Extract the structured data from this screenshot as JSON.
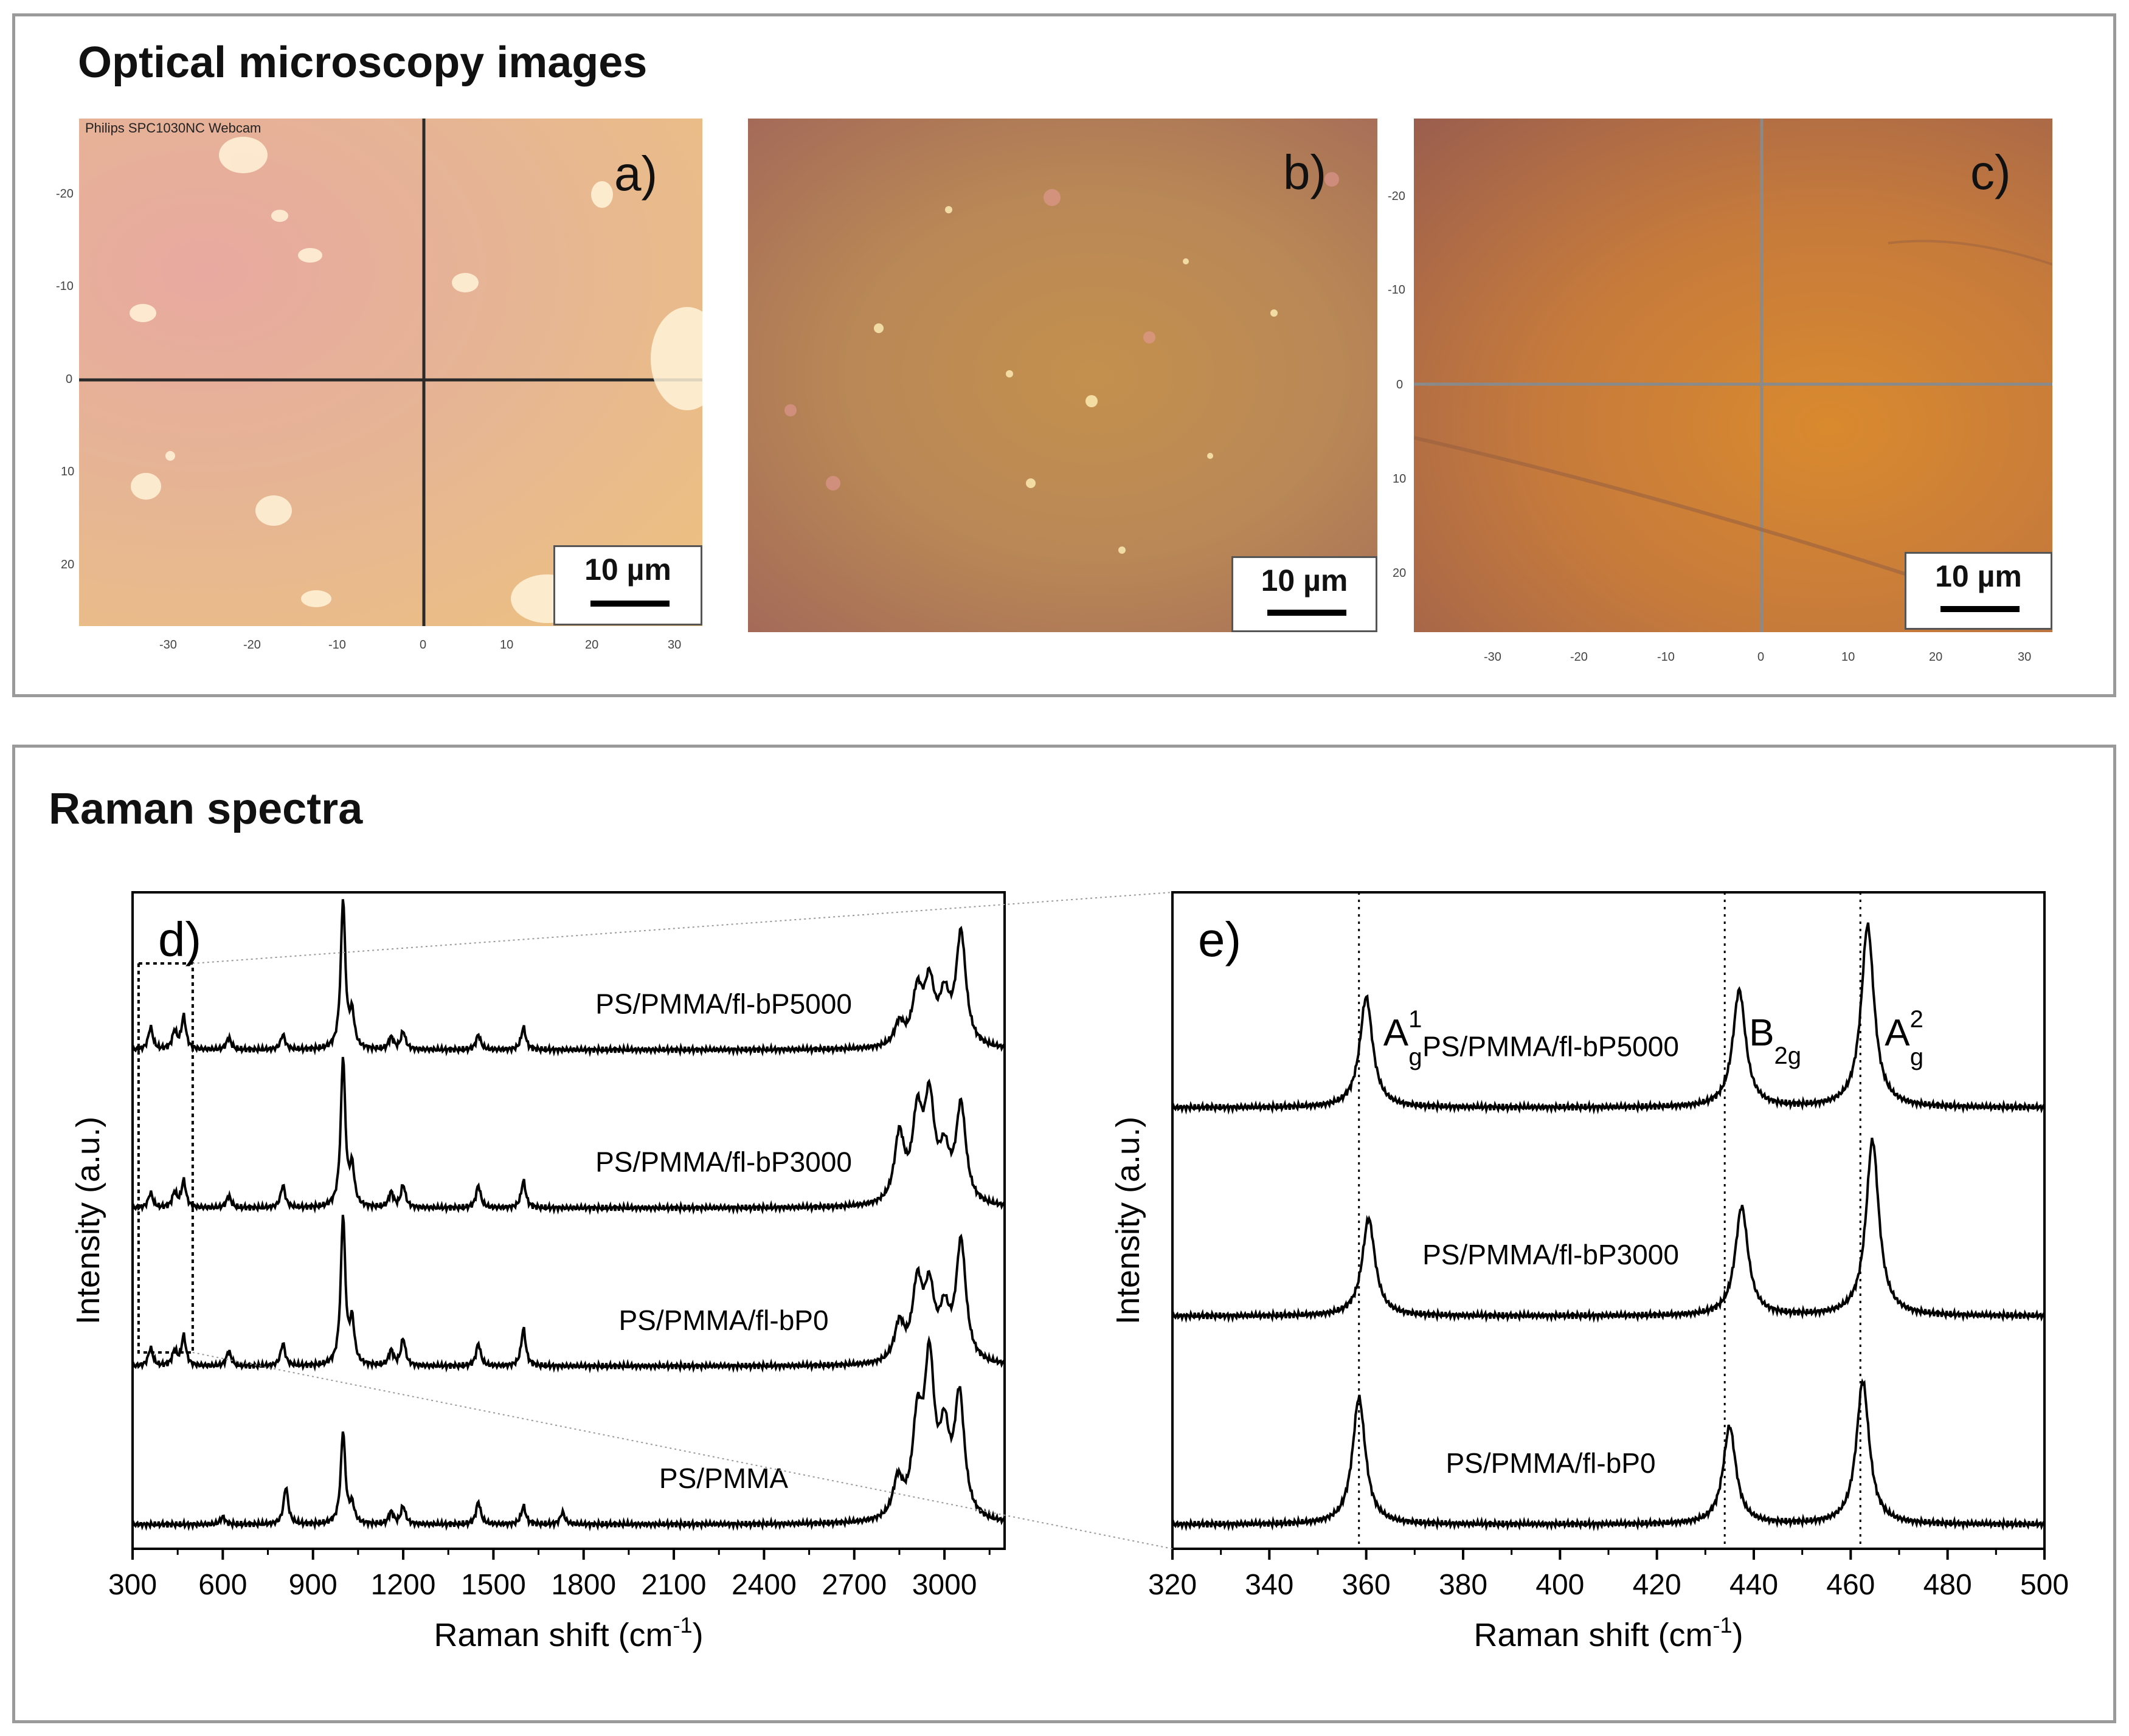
{
  "microscopy": {
    "heading": "Optical microscopy images",
    "watermark": "Philips SPC1030NC Webcam",
    "panels": [
      {
        "letter": "a)",
        "scale": "10 µm",
        "ticks_y": [
          "-20",
          "-10",
          "0",
          "10",
          "20"
        ],
        "ticks_x": [
          "-30",
          "-20",
          "-10",
          "0",
          "10",
          "20",
          "30"
        ]
      },
      {
        "letter": "b)",
        "scale": "10 µm"
      },
      {
        "letter": "c)",
        "scale": "10 µm",
        "ticks_y": [
          "-20",
          "-10",
          "0",
          "10",
          "20"
        ],
        "ticks_x": [
          "-30",
          "-20",
          "-10",
          "0",
          "10",
          "20",
          "30"
        ]
      }
    ],
    "colors": {
      "a": "#e6b48c",
      "b": "#c08850",
      "c": "#cc8038"
    }
  },
  "raman": {
    "heading": "Raman spectra"
  },
  "chart_data": [
    {
      "type": "line",
      "panel": "d)",
      "xlabel": "Raman shift (cm",
      "xlabel_sup": "-1",
      "xlabel_end": ")",
      "ylabel": "Intensity (a.u.)",
      "xlim": [
        300,
        3200
      ],
      "xticks": [
        "300",
        "600",
        "900",
        "1200",
        "1500",
        "1800",
        "2100",
        "2400",
        "2700",
        "3000"
      ],
      "series": [
        {
          "name": "PS/PMMA/fl-bP5000",
          "offset": 3.0,
          "peaks": [
            [
              360,
              0.15
            ],
            [
              440,
              0.12
            ],
            [
              470,
              0.22
            ],
            [
              620,
              0.08
            ],
            [
              800,
              0.1
            ],
            [
              1000,
              1.0
            ],
            [
              1030,
              0.22
            ],
            [
              1160,
              0.08
            ],
            [
              1200,
              0.12
            ],
            [
              1450,
              0.1
            ],
            [
              1600,
              0.15
            ],
            [
              2850,
              0.15
            ],
            [
              2910,
              0.35
            ],
            [
              2950,
              0.4
            ],
            [
              3000,
              0.3
            ],
            [
              3055,
              0.75
            ]
          ]
        },
        {
          "name": "PS/PMMA/fl-bP3000",
          "offset": 2.0,
          "peaks": [
            [
              360,
              0.1
            ],
            [
              440,
              0.1
            ],
            [
              470,
              0.18
            ],
            [
              620,
              0.08
            ],
            [
              800,
              0.15
            ],
            [
              1000,
              1.0
            ],
            [
              1030,
              0.25
            ],
            [
              1160,
              0.1
            ],
            [
              1200,
              0.15
            ],
            [
              1450,
              0.15
            ],
            [
              1600,
              0.18
            ],
            [
              2850,
              0.45
            ],
            [
              2910,
              0.55
            ],
            [
              2950,
              0.65
            ],
            [
              3000,
              0.3
            ],
            [
              3055,
              0.65
            ]
          ]
        },
        {
          "name": "PS/PMMA/fl-bP0",
          "offset": 1.0,
          "peaks": [
            [
              360,
              0.12
            ],
            [
              440,
              0.1
            ],
            [
              470,
              0.2
            ],
            [
              620,
              0.1
            ],
            [
              800,
              0.15
            ],
            [
              1000,
              1.0
            ],
            [
              1030,
              0.28
            ],
            [
              1160,
              0.1
            ],
            [
              1200,
              0.18
            ],
            [
              1450,
              0.15
            ],
            [
              1600,
              0.25
            ],
            [
              2850,
              0.25
            ],
            [
              2910,
              0.5
            ],
            [
              2950,
              0.45
            ],
            [
              3000,
              0.3
            ],
            [
              3055,
              0.8
            ]
          ]
        },
        {
          "name": "PS/PMMA",
          "offset": 0.0,
          "peaks": [
            [
              600,
              0.05
            ],
            [
              810,
              0.25
            ],
            [
              1000,
              0.62
            ],
            [
              1030,
              0.12
            ],
            [
              1160,
              0.08
            ],
            [
              1200,
              0.12
            ],
            [
              1450,
              0.15
            ],
            [
              1600,
              0.12
            ],
            [
              1730,
              0.08
            ],
            [
              2845,
              0.25
            ],
            [
              2910,
              0.6
            ],
            [
              2950,
              1.0
            ],
            [
              3000,
              0.5
            ],
            [
              3050,
              0.8
            ]
          ]
        }
      ]
    },
    {
      "type": "line",
      "panel": "e)",
      "xlabel": "Raman shift (cm",
      "xlabel_sup": "-1",
      "xlabel_end": ")",
      "ylabel": "Intensity (a.u.)",
      "xlim": [
        320,
        500
      ],
      "xticks": [
        "320",
        "340",
        "360",
        "380",
        "400",
        "420",
        "440",
        "460",
        "480",
        "500"
      ],
      "modes": [
        {
          "base": "A",
          "sub": "g",
          "sup": "1",
          "x": 358.5
        },
        {
          "base": "B",
          "sub": "2g",
          "sup": "",
          "x": 434
        },
        {
          "base": "A",
          "sub": "g",
          "sup": "2",
          "x": 462
        }
      ],
      "series": [
        {
          "name": "PS/PMMA/fl-bP5000",
          "offset": 2.0,
          "peaks": [
            [
              360,
              0.68
            ],
            [
              437,
              0.72
            ],
            [
              463.5,
              1.12
            ]
          ]
        },
        {
          "name": "PS/PMMA/fl-bP3000",
          "offset": 1.0,
          "peaks": [
            [
              360.5,
              0.6
            ],
            [
              437.5,
              0.67
            ],
            [
              464.5,
              1.08
            ]
          ]
        },
        {
          "name": "PS/PMMA/fl-bP0",
          "offset": 0.0,
          "peaks": [
            [
              358.5,
              0.78
            ],
            [
              435,
              0.6
            ],
            [
              462.5,
              0.88
            ]
          ]
        }
      ]
    }
  ]
}
